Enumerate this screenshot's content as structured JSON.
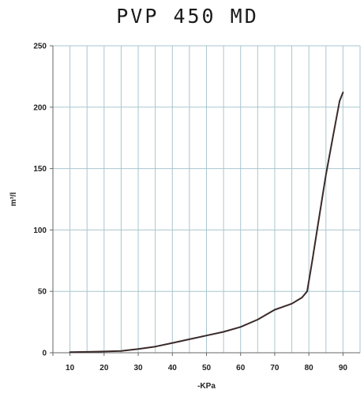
{
  "chart_data": {
    "type": "line",
    "title": "PVP 450 MD",
    "xlabel": "-KPa",
    "ylabel": "m³/l",
    "xlim": [
      5,
      95
    ],
    "ylim": [
      0,
      250
    ],
    "x_ticks": [
      "10",
      "20",
      "30",
      "40",
      "50",
      "60",
      "70",
      "80",
      "90"
    ],
    "y_ticks": [
      "0",
      "50",
      "100",
      "150",
      "200",
      "250"
    ],
    "grid": true,
    "colors": {
      "line": "#3a2a2a",
      "grid": "#a9c6cf",
      "axis": "#666666"
    },
    "series": [
      {
        "values_x": [
          10,
          15,
          20,
          25,
          30,
          35,
          40,
          45,
          50,
          55,
          60,
          65,
          70,
          72,
          75,
          78,
          79.5,
          81,
          83,
          85,
          87,
          89,
          90
        ],
        "values_y": [
          0.5,
          0.7,
          1,
          1.5,
          3,
          5,
          8,
          11,
          14,
          17,
          21,
          27,
          35,
          37,
          40,
          45,
          50,
          75,
          110,
          145,
          175,
          205,
          212
        ]
      }
    ]
  }
}
